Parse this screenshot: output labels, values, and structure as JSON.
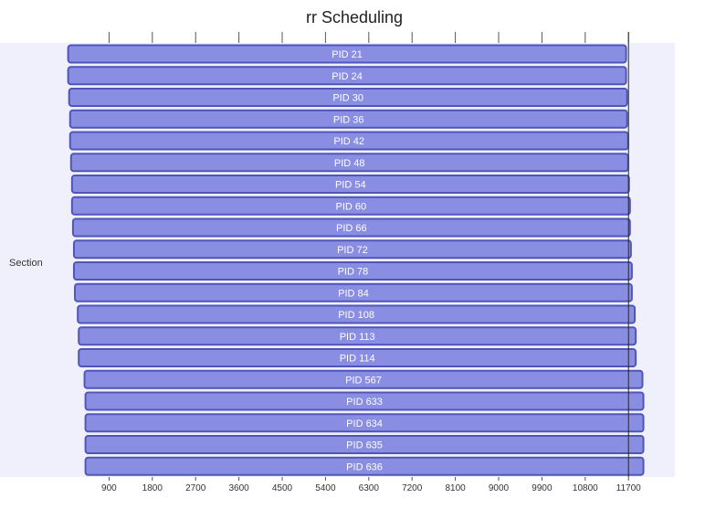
{
  "chart_data": {
    "type": "gantt",
    "title": "rr Scheduling",
    "section_label": "Section",
    "x_ticks": [
      900,
      1800,
      2700,
      3600,
      4500,
      5400,
      6300,
      7200,
      8100,
      9000,
      9900,
      10800,
      11700
    ],
    "xlim": [
      0,
      12600
    ],
    "today_marker": 11700,
    "tasks": [
      {
        "label": "PID 21",
        "start": 50,
        "end": 11650
      },
      {
        "label": "PID 24",
        "start": 50,
        "end": 11650
      },
      {
        "label": "PID 30",
        "start": 70,
        "end": 11670
      },
      {
        "label": "PID 36",
        "start": 90,
        "end": 11670
      },
      {
        "label": "PID 42",
        "start": 90,
        "end": 11690
      },
      {
        "label": "PID 48",
        "start": 110,
        "end": 11690
      },
      {
        "label": "PID 54",
        "start": 130,
        "end": 11710
      },
      {
        "label": "PID 60",
        "start": 130,
        "end": 11730
      },
      {
        "label": "PID 66",
        "start": 150,
        "end": 11730
      },
      {
        "label": "PID 72",
        "start": 170,
        "end": 11750
      },
      {
        "label": "PID 78",
        "start": 170,
        "end": 11770
      },
      {
        "label": "PID 84",
        "start": 190,
        "end": 11770
      },
      {
        "label": "PID 108",
        "start": 250,
        "end": 11830
      },
      {
        "label": "PID 113",
        "start": 270,
        "end": 11850
      },
      {
        "label": "PID 114",
        "start": 270,
        "end": 11850
      },
      {
        "label": "PID 567",
        "start": 390,
        "end": 11990
      },
      {
        "label": "PID 633",
        "start": 410,
        "end": 12010
      },
      {
        "label": "PID 634",
        "start": 410,
        "end": 12010
      },
      {
        "label": "PID 635",
        "start": 410,
        "end": 12010
      },
      {
        "label": "PID 636",
        "start": 410,
        "end": 12010
      }
    ],
    "colors": {
      "bar_fill": "#8a8ee3",
      "bar_stroke": "#5055b8",
      "section_band": "#f0f0fd",
      "tick_text": "#333333",
      "today_line": "#222222",
      "bar_text": "#ffffff"
    }
  }
}
